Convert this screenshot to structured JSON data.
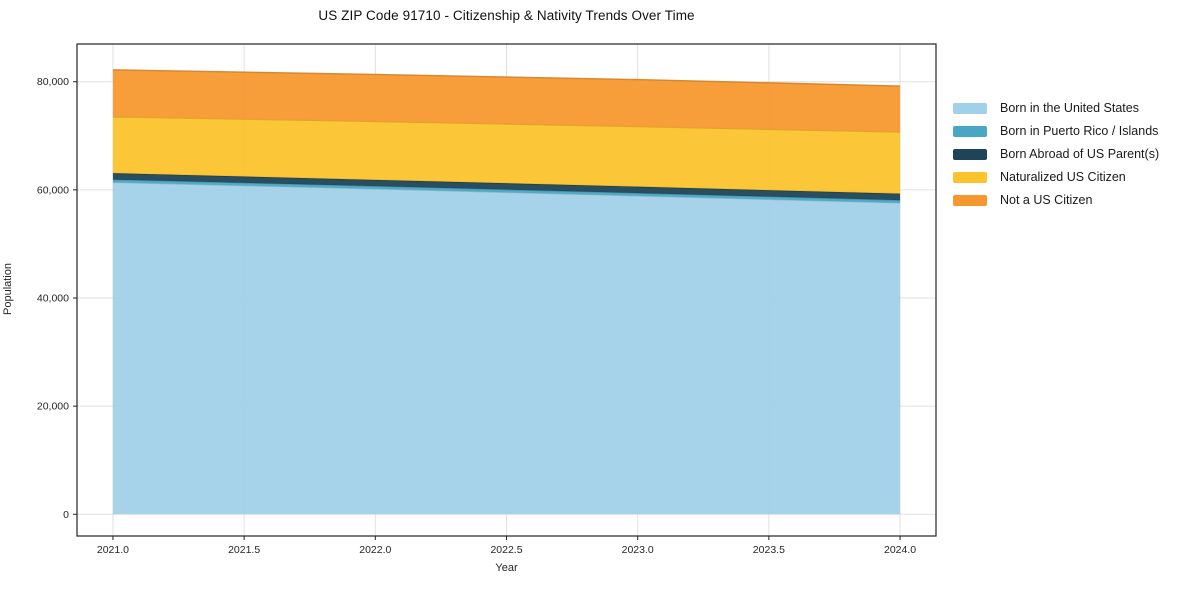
{
  "title": "US ZIP Code 91710 - Citizenship & Nativity Trends Over Time",
  "axes": {
    "xlabel": "Year",
    "ylabel": "Population"
  },
  "chart_data": {
    "type": "area",
    "stacked": true,
    "title": "US ZIP Code 91710 - Citizenship & Nativity Trends Over Time",
    "xlabel": "Year",
    "ylabel": "Population",
    "x": [
      2021,
      2022,
      2023,
      2024
    ],
    "series": [
      {
        "name": "Born in the United States",
        "color": "#A1D1E8",
        "values": [
          61400,
          60200,
          58900,
          57600
        ]
      },
      {
        "name": "Born in Puerto Rico / Islands",
        "color": "#4AA7C4",
        "values": [
          500,
          500,
          500,
          500
        ]
      },
      {
        "name": "Born Abroad of US Parent(s)",
        "color": "#1E4557",
        "values": [
          1200,
          1150,
          1200,
          1200
        ]
      },
      {
        "name": "Naturalized US Citizen",
        "color": "#FBC32C",
        "values": [
          10400,
          10800,
          11100,
          11400
        ]
      },
      {
        "name": "Not a US Citizen",
        "color": "#F7982F",
        "values": [
          8700,
          8700,
          8700,
          8500
        ]
      }
    ],
    "xticks": [
      2021.0,
      2021.5,
      2022.0,
      2022.5,
      2023.0,
      2023.5,
      2024.0
    ],
    "xtick_labels": [
      "2021.0",
      "2021.5",
      "2022.0",
      "2022.5",
      "2023.0",
      "2023.5",
      "2024.0"
    ],
    "yticks": [
      0,
      20000,
      40000,
      60000,
      80000
    ],
    "ytick_labels": [
      "0",
      "20,000",
      "40,000",
      "60,000",
      "80,000"
    ],
    "xlim": [
      2020.863,
      2024.137
    ],
    "ylim": [
      -4013,
      86975
    ],
    "grid": true,
    "legend_position": "right of plot, no frame",
    "colors": {
      "spine": "#222222",
      "grid": "#c8c8c8",
      "tick_text": "#262626"
    }
  }
}
